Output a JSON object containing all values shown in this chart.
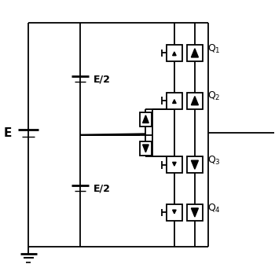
{
  "bg": "#ffffff",
  "lc": "#000000",
  "lw": 1.3,
  "lw_thick": 2.0,
  "lw_thin": 1.0,
  "figsize": [
    3.5,
    3.5
  ],
  "dpi": 100,
  "xlim": [
    0,
    10
  ],
  "ylim": [
    0,
    10
  ],
  "xL": 1.0,
  "xM": 2.9,
  "xSR": 7.6,
  "xOUT": 10.0,
  "yT": 9.2,
  "yB": 1.0,
  "yMID": 5.1,
  "yQ": [
    8.1,
    6.35,
    4.0,
    2.25
  ],
  "xi": 6.35,
  "xd": 7.1,
  "xcd": 5.3,
  "cap1_y": 7.1,
  "cap2_y": 3.1,
  "batt_y": 5.1,
  "q_labels": [
    "Q$_1$",
    "Q$_2$",
    "Q$_3$",
    "Q$_4$"
  ]
}
